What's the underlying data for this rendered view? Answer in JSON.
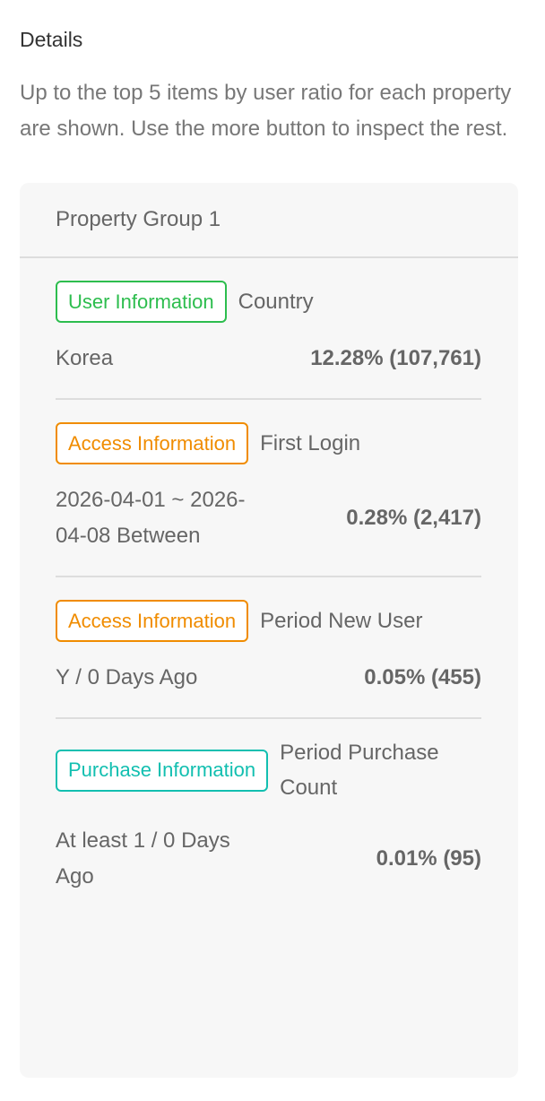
{
  "title": "Details",
  "intro": "Up to the top 5 items by user ratio for each property are shown. Use the more button to inspect the rest.",
  "group": {
    "title": "Property Group 1",
    "items": [
      {
        "tag": "User Information",
        "tag_color": "#2dbd4e",
        "name": "Country",
        "label": "Korea",
        "value": "12.28% (107,761)"
      },
      {
        "tag": "Access Information",
        "tag_color": "#f08c00",
        "name": "First Login",
        "label": "2026-04-01 ~ 2026-04-08 Between",
        "value": "0.28% (2,417)"
      },
      {
        "tag": "Access Information",
        "tag_color": "#f08c00",
        "name": "Period New User",
        "label": "Y / 0 Days Ago",
        "value": "0.05% (455)"
      },
      {
        "tag": "Purchase Information",
        "tag_color": "#12bfb0",
        "name": "Period Purchase Count",
        "label": "At least 1 / 0 Days Ago",
        "value": "0.01% (95)"
      }
    ]
  }
}
